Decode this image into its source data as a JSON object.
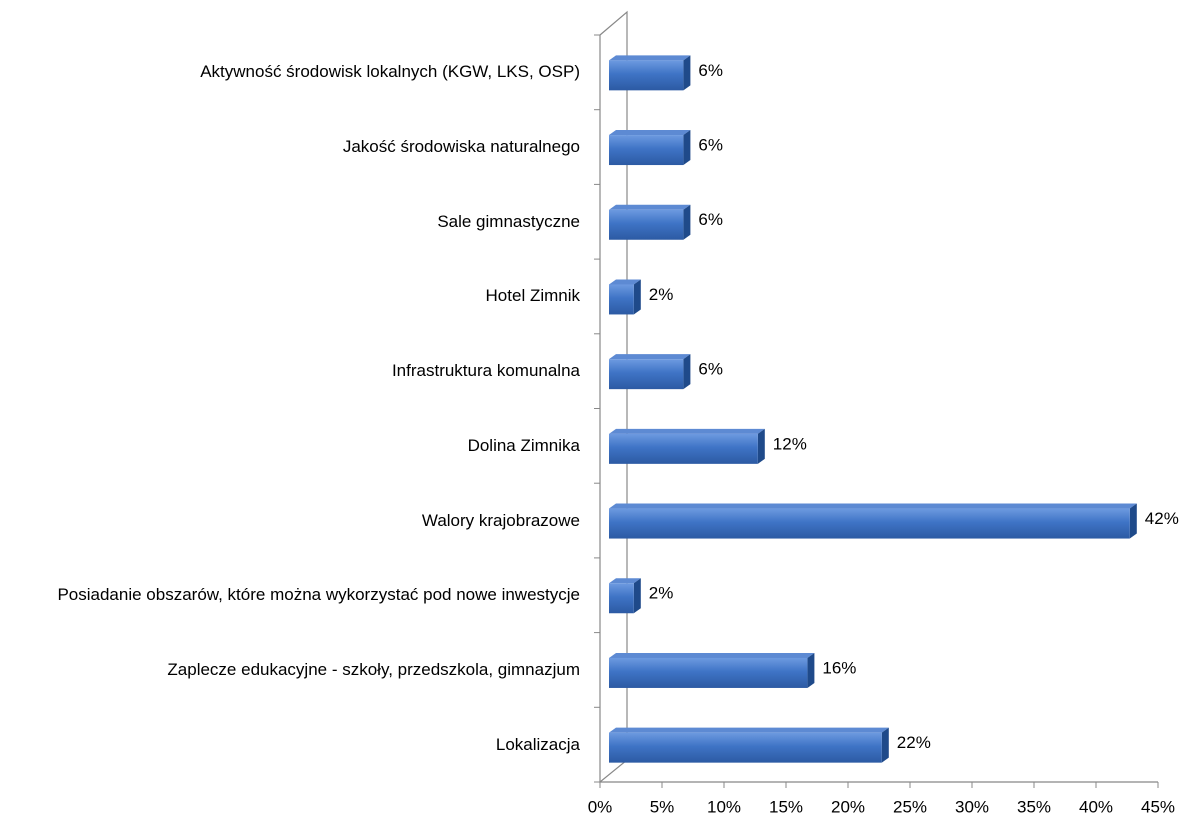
{
  "chart_data": {
    "type": "bar3d_horizontal",
    "categories": [
      "Aktywność środowisk lokalnych (KGW, LKS, OSP)",
      "Jakość środowiska naturalnego",
      "Sale gimnastyczne",
      "Hotel Zimnik",
      "Infrastruktura komunalna",
      "Dolina Zimnika",
      "Walory krajobrazowe",
      "Posiadanie obszarów, które można wykorzystać pod nowe inwestycje",
      "Zaplecze edukacyjne - szkoły, przedszkola, gimnazjum",
      "Lokalizacja"
    ],
    "values": [
      6,
      6,
      6,
      2,
      6,
      12,
      42,
      2,
      16,
      22
    ],
    "value_labels": [
      "6%",
      "6%",
      "6%",
      "2%",
      "6%",
      "12%",
      "42%",
      "2%",
      "16%",
      "22%"
    ],
    "color": "#3a6fc0",
    "xlim": [
      0,
      45
    ],
    "xticks": [
      {
        "value": 0,
        "label": "0%"
      },
      {
        "value": 5,
        "label": "5%"
      },
      {
        "value": 10,
        "label": "10%"
      },
      {
        "value": 15,
        "label": "15%"
      },
      {
        "value": 20,
        "label": "20%"
      },
      {
        "value": 25,
        "label": "25%"
      },
      {
        "value": 30,
        "label": "30%"
      },
      {
        "value": 35,
        "label": "35%"
      },
      {
        "value": 40,
        "label": "40%"
      },
      {
        "value": 45,
        "label": "45%"
      }
    ],
    "grid": false
  }
}
